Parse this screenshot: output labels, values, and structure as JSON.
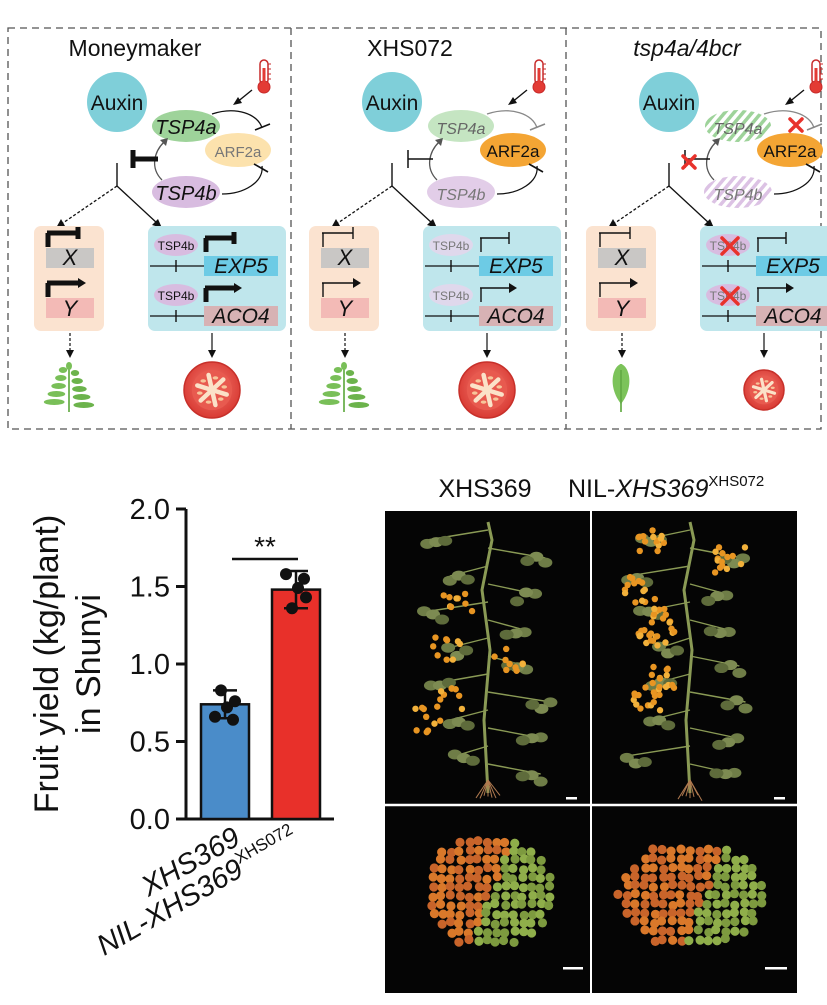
{
  "diagram": {
    "panels": [
      {
        "title": "Moneymaker",
        "title_italic": false,
        "auxin": "Auxin",
        "tsp4a": "TSP4a",
        "arf2a": "ARF2a",
        "tsp4b": "TSP4b",
        "gene_x": "X",
        "gene_y": "Y",
        "site_label_1": "TSP4b",
        "site_label_2": "TSP4b",
        "gene_exp5": "EXP5",
        "gene_aco4": "ACO4"
      },
      {
        "title": "XHS072",
        "title_italic": false,
        "auxin": "Auxin",
        "tsp4a": "TSP4a",
        "arf2a": "ARF2a",
        "tsp4b": "TSP4b",
        "gene_x": "X",
        "gene_y": "Y",
        "site_label_1": "TSP4b",
        "site_label_2": "TSP4b",
        "gene_exp5": "EXP5",
        "gene_aco4": "ACO4"
      },
      {
        "title": "tsp4a/4bcr",
        "title_italic": true,
        "auxin": "Auxin",
        "tsp4a": "TSP4a",
        "arf2a": "ARF2a",
        "tsp4b": "TSP4b",
        "gene_x": "X",
        "gene_y": "Y",
        "site_label_1": "TSP4b",
        "site_label_2": "TSP4b",
        "gene_exp5": "EXP5",
        "gene_aco4": "ACO4"
      }
    ],
    "colors": {
      "auxin": "#7fcfd9",
      "tsp4a": "#9ed39a",
      "arf2a": "#f4a534",
      "tsp4b": "#d8bce0",
      "target_box": "#bfe6ec",
      "xy_box": "#fbe3d0",
      "exp5": "#6dcbe5",
      "aco4": "#d7b2b4",
      "knockout": "#e8322c"
    }
  },
  "chart_data": {
    "type": "bar",
    "categories": [
      "XHS369",
      "NIL-XHS369"
    ],
    "category_superscripts": [
      "",
      "XHS072"
    ],
    "values": [
      0.74,
      1.48
    ],
    "errors": [
      0.09,
      0.12
    ],
    "points": [
      [
        0.66,
        0.72,
        0.76,
        0.83,
        0.64
      ],
      [
        1.58,
        1.49,
        1.43,
        1.36,
        1.55
      ]
    ],
    "colors": [
      "#4a8cc9",
      "#e8302a"
    ],
    "ylabel_line1": "Fruit yield (kg/plant)",
    "ylabel_line2": "in Shunyi",
    "ylim": [
      0,
      2.0
    ],
    "yticks": [
      "0.0",
      "0.5",
      "1.0",
      "1.5",
      "2.0"
    ],
    "significance": "**"
  },
  "photo": {
    "label_left": "XHS369",
    "label_right_prefix": "NIL-",
    "label_right_italic": "XHS369",
    "label_right_sup": "XHS072"
  }
}
